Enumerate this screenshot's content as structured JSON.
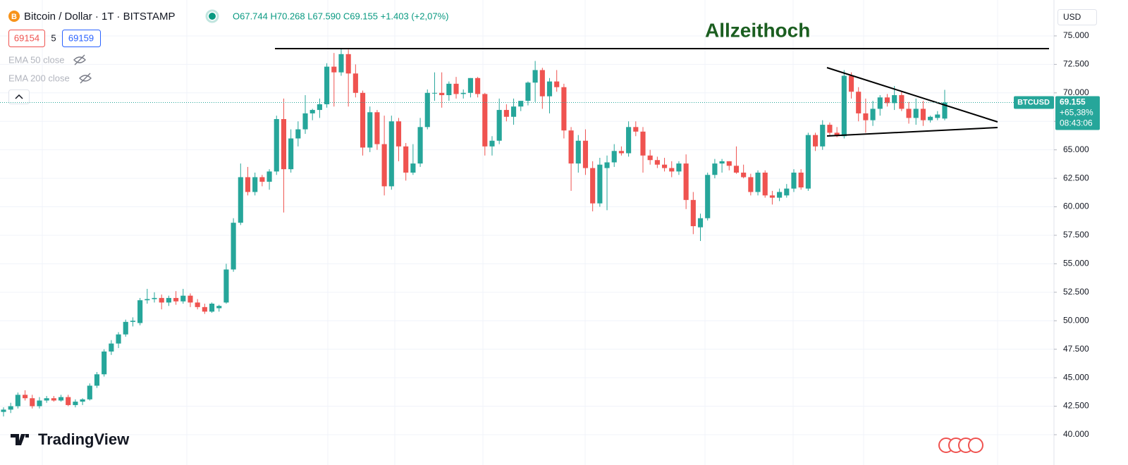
{
  "chart_data": {
    "type": "candlestick",
    "symbol": "Bitcoin / Dollar · 1T · BITSTAMP",
    "ohlc": "O67.744 H70.268 L67.590 C69.155 +1.403 (+2,07%)",
    "bid": "69154",
    "spread": "5",
    "ask": "69159",
    "indicators": [
      "EMA 50 close",
      "EMA 200 close"
    ],
    "annotation": "Allzeithoch",
    "currency": "USD",
    "ticker": "BTCUSD",
    "last_price": "69.155",
    "change": "+65,38%",
    "countdown": "08:43:06",
    "brand": "TradingView",
    "up_color": "#26a69a",
    "down_color": "#ef5350",
    "grid": true,
    "ylim": [
      37340,
      78150
    ],
    "yticks": [
      {
        "value": 40000,
        "label": "40.000"
      },
      {
        "value": 42500,
        "label": "42.500"
      },
      {
        "value": 45000,
        "label": "45.000"
      },
      {
        "value": 47500,
        "label": "47.500"
      },
      {
        "value": 50000,
        "label": "50.000"
      },
      {
        "value": 52500,
        "label": "52.500"
      },
      {
        "value": 55000,
        "label": "55.000"
      },
      {
        "value": 57500,
        "label": "57.500"
      },
      {
        "value": 60000,
        "label": "60.000"
      },
      {
        "value": 62500,
        "label": "62.500"
      },
      {
        "value": 65000,
        "label": "65.000"
      },
      {
        "value": 67500,
        "label": "67.500"
      },
      {
        "value": 70000,
        "label": "70.000"
      },
      {
        "value": 72500,
        "label": "72.500"
      },
      {
        "value": 75000,
        "label": "75.000"
      }
    ],
    "open": [
      42000,
      42200,
      42500,
      43500,
      43200,
      42500,
      43000,
      43200,
      43000,
      43300,
      42600,
      42900,
      43100,
      44300,
      45300,
      47300,
      48000,
      48800,
      49900,
      49800,
      51800,
      51900,
      52000,
      51600,
      52000,
      51700,
      52200,
      51600,
      51200,
      50800,
      51100,
      51600,
      54500,
      58600,
      62600,
      61300,
      62600,
      62200,
      63100,
      67700,
      63300,
      66000,
      66800,
      68200,
      68500,
      69000,
      72300,
      71800,
      73400,
      71700,
      70000,
      65200,
      68300,
      65500,
      61800,
      67500,
      65300,
      63000,
      63800,
      67000,
      70000,
      70000,
      69800,
      70800,
      69900,
      70000,
      71300,
      69900,
      65300,
      65800,
      68500,
      67900,
      68800,
      69300,
      70900,
      72000,
      69700,
      71000,
      70500,
      66700,
      63800,
      65800,
      63400,
      60300,
      63400,
      63900,
      64900,
      64700,
      67000,
      66600,
      64500,
      64100,
      63700,
      63400,
      63100,
      63800,
      60600,
      58200,
      59000,
      62800,
      63800,
      64000,
      63600,
      63000,
      62600,
      61300,
      63000,
      61000,
      60800,
      61000,
      61600,
      63000,
      61600,
      66300,
      65300,
      67200,
      66500,
      66200,
      71500,
      70100,
      68200,
      67600,
      68600,
      69600,
      69100,
      69800,
      68600,
      67800,
      68600,
      67600,
      67800,
      67744
    ],
    "high": [
      42400,
      42800,
      43700,
      43900,
      43500,
      43300,
      43400,
      43400,
      43500,
      43500,
      43100,
      43200,
      44500,
      45500,
      47500,
      48300,
      49000,
      50100,
      50300,
      52000,
      52800,
      52500,
      52300,
      52200,
      52600,
      52800,
      52400,
      51900,
      51500,
      51600,
      51400,
      55000,
      59000,
      63800,
      63500,
      63000,
      62800,
      63300,
      68000,
      69500,
      66800,
      67500,
      69800,
      68600,
      69500,
      72600,
      73500,
      73900,
      73800,
      72500,
      70200,
      68800,
      68500,
      68000,
      68000,
      67800,
      65600,
      65500,
      67800,
      70300,
      71800,
      71800,
      71000,
      71400,
      70300,
      71300,
      71400,
      70000,
      66200,
      69500,
      69000,
      69500,
      69200,
      71000,
      72800,
      72200,
      71300,
      72000,
      70800,
      67000,
      66300,
      66800,
      64000,
      64300,
      64500,
      65500,
      65300,
      67500,
      67500,
      67000,
      65000,
      64400,
      64300,
      64000,
      64000,
      64600,
      61300,
      59400,
      63000,
      64200,
      64200,
      64000,
      65300,
      63700,
      62900,
      63200,
      63200,
      61400,
      61600,
      62000,
      63300,
      63300,
      66500,
      66500,
      67600,
      67400,
      67000,
      72000,
      71800,
      70500,
      69500,
      69300,
      69800,
      69900,
      70600,
      70100,
      69200,
      69500,
      69300,
      68000,
      68400,
      70268
    ],
    "low": [
      41600,
      41900,
      42300,
      43000,
      42300,
      42300,
      42800,
      42900,
      42900,
      42500,
      42400,
      42600,
      43000,
      44100,
      45100,
      47000,
      47600,
      48600,
      49500,
      49600,
      51500,
      51600,
      51000,
      51300,
      51400,
      51500,
      51200,
      51000,
      50600,
      50700,
      50800,
      51500,
      54300,
      58400,
      61000,
      61000,
      61800,
      61500,
      62800,
      59500,
      63000,
      65300,
      66400,
      67600,
      67800,
      68700,
      68800,
      71500,
      68800,
      69600,
      64500,
      64800,
      65000,
      61000,
      61500,
      64000,
      62300,
      62800,
      63500,
      66800,
      69300,
      68700,
      69300,
      69500,
      69500,
      69600,
      69600,
      64500,
      64500,
      65500,
      67500,
      67200,
      68400,
      68900,
      69200,
      68600,
      68200,
      70100,
      66000,
      61400,
      63000,
      62800,
      59600,
      60000,
      59700,
      63500,
      64500,
      64400,
      66200,
      63000,
      63700,
      63400,
      63100,
      62600,
      62800,
      59800,
      57600,
      57000,
      58800,
      62500,
      63000,
      63200,
      62900,
      62500,
      61000,
      61000,
      60800,
      60200,
      60500,
      60800,
      61300,
      61500,
      61400,
      64900,
      65000,
      66300,
      66100,
      66000,
      69500,
      67500,
      66500,
      67100,
      68000,
      68800,
      68500,
      68400,
      67300,
      67200,
      67100,
      67400,
      67600,
      67590
    ],
    "close": [
      42200,
      42500,
      43500,
      43200,
      42500,
      43000,
      43200,
      43000,
      43300,
      42600,
      42900,
      43100,
      44300,
      45300,
      47300,
      48000,
      48800,
      49900,
      50000,
      51800,
      51900,
      52000,
      51600,
      52000,
      51700,
      52200,
      51600,
      51200,
      50800,
      51500,
      51300,
      54500,
      58600,
      62600,
      61300,
      62600,
      62200,
      63100,
      67700,
      63300,
      66000,
      66800,
      68200,
      68500,
      69000,
      72300,
      71800,
      73400,
      71700,
      70000,
      65200,
      68300,
      65500,
      61800,
      67500,
      65300,
      63000,
      63800,
      67000,
      70000,
      70000,
      69800,
      70800,
      69900,
      70000,
      71300,
      69900,
      65300,
      65800,
      68500,
      67900,
      68800,
      69300,
      70900,
      72000,
      69700,
      71000,
      70500,
      66700,
      63800,
      65800,
      63400,
      60300,
      63700,
      63900,
      64900,
      64700,
      67000,
      66600,
      64500,
      64100,
      63700,
      63400,
      63100,
      63800,
      60600,
      58300,
      59000,
      62800,
      63800,
      64000,
      63600,
      63000,
      62600,
      61300,
      63000,
      61000,
      60800,
      61300,
      61600,
      63000,
      61700,
      66300,
      65300,
      67200,
      66500,
      66200,
      71500,
      70100,
      68200,
      67600,
      68600,
      69600,
      69100,
      69800,
      68600,
      67800,
      68600,
      67600,
      67900,
      68100,
      69155
    ]
  }
}
